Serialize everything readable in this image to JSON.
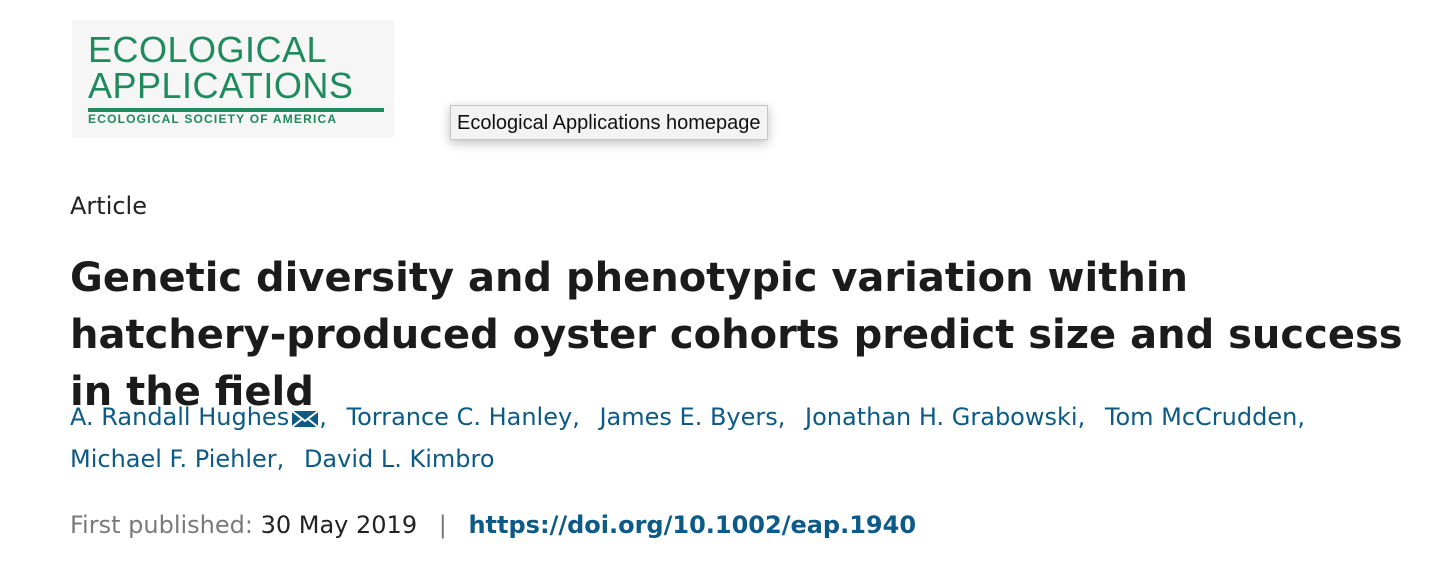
{
  "logo": {
    "line1": "ECOLOGICAL",
    "line2": "APPLICATIONS",
    "society": "ECOLOGICAL SOCIETY OF AMERICA",
    "color": "#1e8a5e"
  },
  "tooltip": {
    "text": "Ecological Applications homepage"
  },
  "article": {
    "type": "Article",
    "title": "Genetic diversity and phenotypic variation within hatchery-produced oyster cohorts predict size and success in the field",
    "authors": [
      {
        "name": "A. Randall Hughes",
        "separator": ","
      },
      {
        "name": "Torrance C. Hanley",
        "separator": ","
      },
      {
        "name": "James E. Byers",
        "separator": ","
      },
      {
        "name": "Jonathan H. Grabowski",
        "separator": ","
      },
      {
        "name": "Tom McCrudden",
        "separator": ","
      },
      {
        "name": "Michael F. Piehler",
        "separator": ","
      },
      {
        "name": "David L. Kimbro",
        "separator": ""
      }
    ],
    "corresponding_icon": "envelope-icon",
    "first_published_label": "First published:",
    "first_published_date": "30 May 2019",
    "separator": "|",
    "doi": "https://doi.org/10.1002/eap.1940"
  },
  "colors": {
    "link": "#0b5a87",
    "muted": "#7a7a7a",
    "text": "#1b1b1b"
  }
}
